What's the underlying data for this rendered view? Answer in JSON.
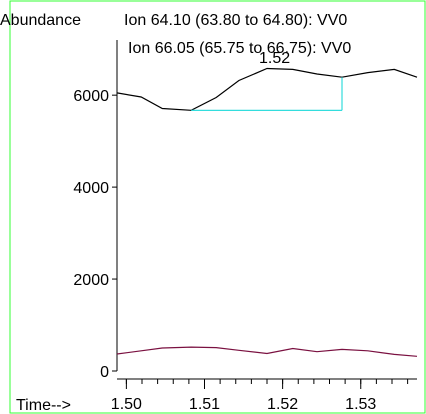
{
  "colors": {
    "border": "#33ff33",
    "ion1": "#000000",
    "ion2": "#7a1040",
    "annotation": "#33dddd",
    "axis": "#000000"
  },
  "chart_data": {
    "type": "line",
    "ylabel": "Abundance",
    "xlabel": "Time-->",
    "ylim": [
      0,
      7200
    ],
    "xlim": [
      1.4988,
      1.5372
    ],
    "x_ticks": [
      1.5,
      1.51,
      1.52,
      1.53
    ],
    "x_tick_labels": [
      "1.50",
      "1.51",
      "1.52",
      "1.53"
    ],
    "x_minor_step": 0.002,
    "y_ticks": [
      0,
      2000,
      4000,
      6000
    ],
    "y_tick_labels": [
      "0",
      "2000",
      "4000",
      "6000"
    ],
    "series": [
      {
        "name": "Ion  64.10 (63.80 to 64.80): VV0",
        "x": [
          1.4988,
          1.5019,
          1.5046,
          1.5083,
          1.5115,
          1.5144,
          1.518,
          1.5213,
          1.5244,
          1.5276,
          1.5309,
          1.5343,
          1.5372
        ],
        "values": [
          6050,
          5960,
          5710,
          5670,
          5950,
          6320,
          6580,
          6560,
          6460,
          6390,
          6490,
          6560,
          6390
        ]
      },
      {
        "name": "Ion  66.05 (65.75 to 66.75): VV0",
        "x": [
          1.4988,
          1.5019,
          1.5046,
          1.5083,
          1.5115,
          1.5144,
          1.518,
          1.5213,
          1.5244,
          1.5276,
          1.5309,
          1.5343,
          1.5372
        ],
        "values": [
          370,
          440,
          500,
          520,
          510,
          450,
          380,
          490,
          420,
          470,
          440,
          360,
          320
        ]
      }
    ],
    "annotation": {
      "label": "1.52",
      "x_start": 1.5083,
      "x_end": 1.5276,
      "y_low": 5670,
      "y_high": 6390
    }
  }
}
